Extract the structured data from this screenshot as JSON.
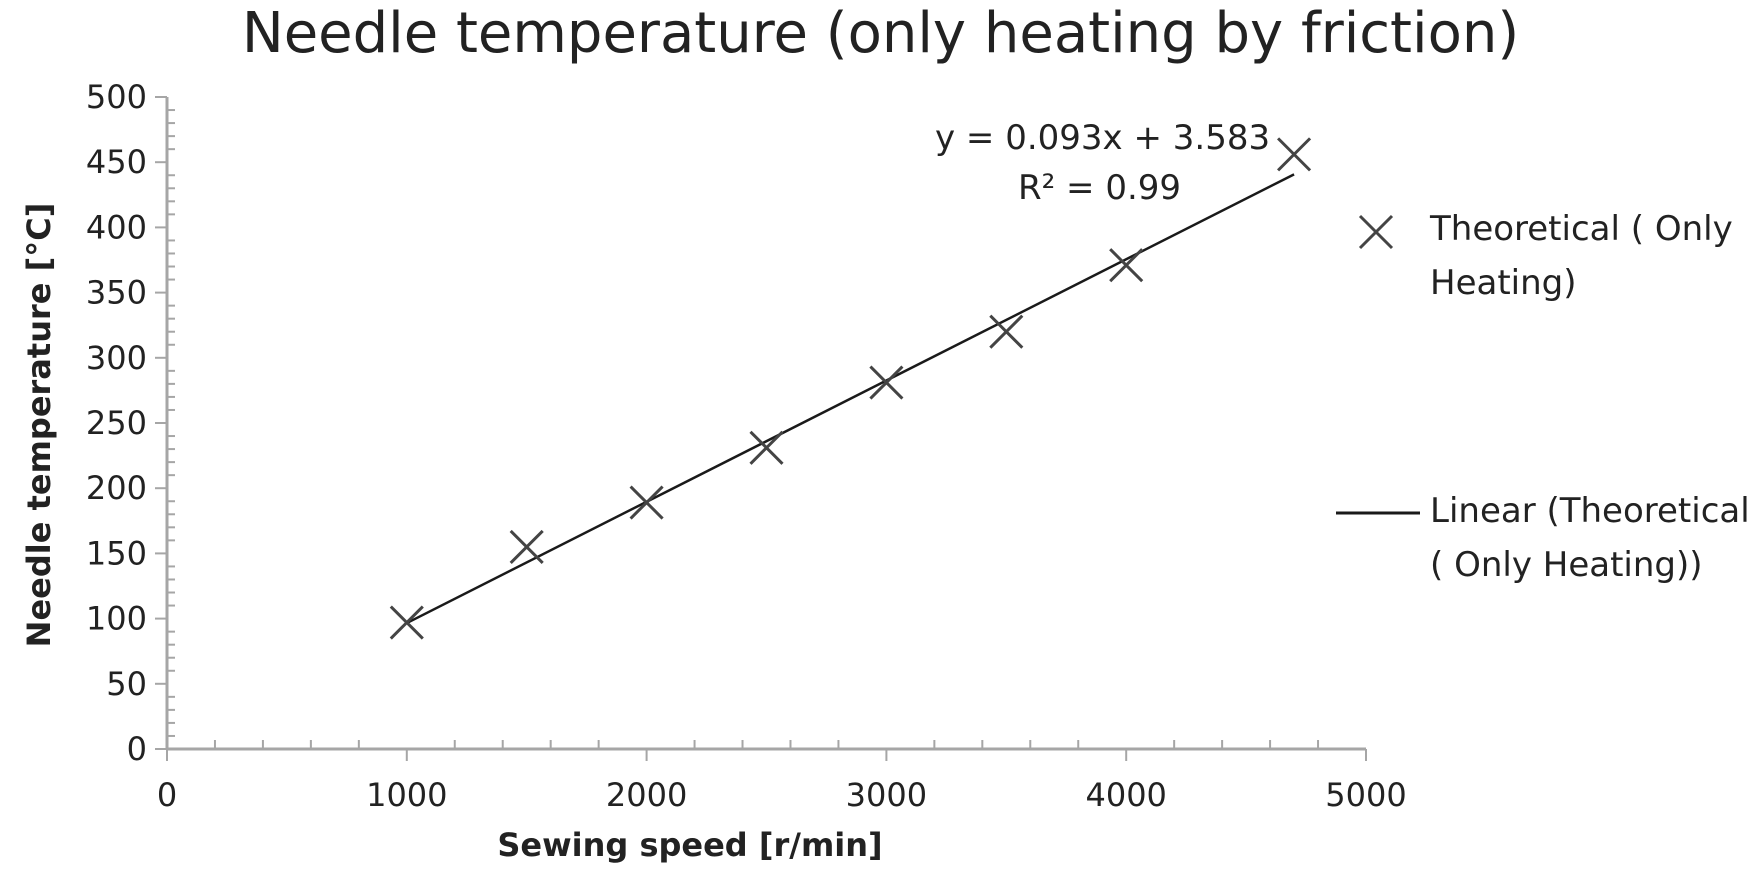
{
  "chart_data": {
    "type": "scatter",
    "title": "Needle temperature (only heating by friction)",
    "xlabel": "Sewing speed [r/min]",
    "ylabel": "Needle temperature [°C]",
    "xlim": [
      0,
      5000
    ],
    "ylim": [
      0,
      500
    ],
    "x_ticks": [
      0,
      1000,
      2000,
      3000,
      4000,
      5000
    ],
    "y_ticks": [
      0,
      50,
      100,
      150,
      200,
      250,
      300,
      350,
      400,
      450,
      500
    ],
    "series": [
      {
        "name": "Theoretical ( Only Heating)",
        "marker": "x",
        "x": [
          1000,
          1500,
          2000,
          2500,
          3000,
          3500,
          4000,
          4700
        ],
        "y": [
          97,
          155,
          189,
          231,
          281,
          320,
          371,
          456
        ]
      }
    ],
    "trendline": {
      "name": "Linear (Theoretical ( Only Heating))",
      "slope": 0.093,
      "intercept": 3.583,
      "x_range": [
        1000,
        4700
      ],
      "equation": "y = 0.093x + 3.583",
      "r_squared": "R² = 0.99"
    },
    "legend": {
      "position": "right",
      "entries": [
        "Theoretical ( Only Heating)",
        "Linear (Theoretical ( Only Heating))"
      ]
    },
    "colors": {
      "marker": "#444444",
      "line": "#1a1a1a",
      "axis": "#a6a6a6",
      "text": "#222222"
    }
  }
}
